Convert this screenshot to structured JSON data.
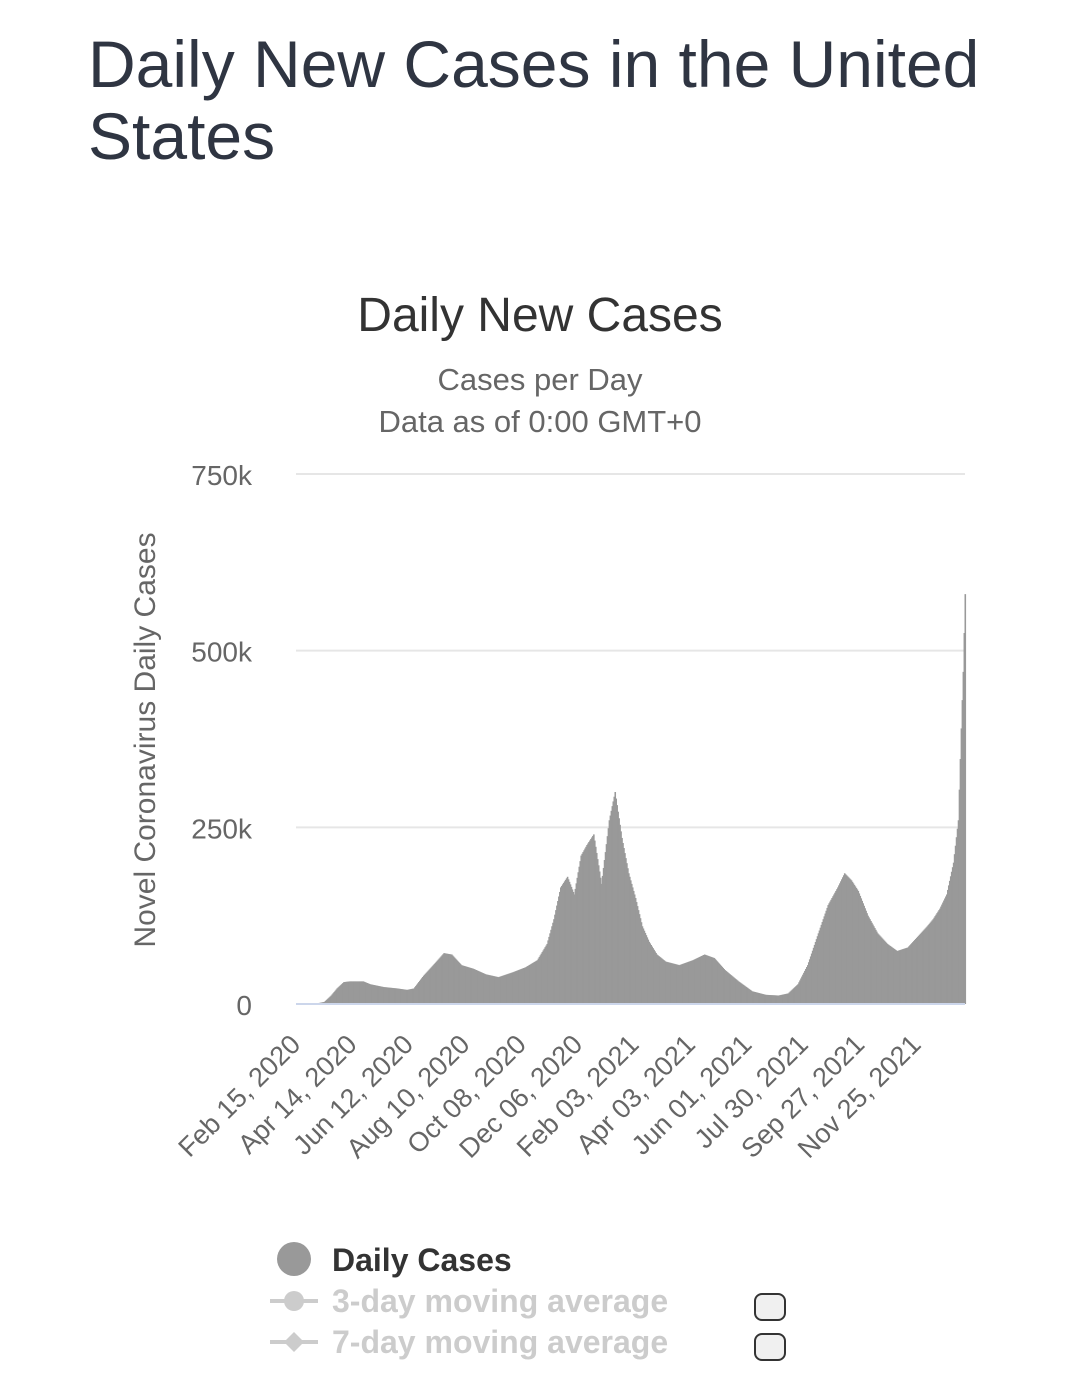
{
  "page": {
    "title": "Daily New Cases in the United States"
  },
  "colors": {
    "bars": "#999999",
    "grid": "#e6e6e6",
    "axis": "#ccd6eb",
    "text": "#333333",
    "muted": "#666666",
    "legend_inactive": "#cccccc"
  },
  "chart_data": {
    "type": "bar",
    "title": "Daily New Cases",
    "subtitle_lines": [
      "Cases per Day",
      "Data as of 0:00 GMT+0"
    ],
    "ylabel": "Novel Coronavirus Daily Cases",
    "xlabel": "",
    "ylim": [
      0,
      750000
    ],
    "yticks": [
      {
        "value": 0,
        "label": "0"
      },
      {
        "value": 250000,
        "label": "250k"
      },
      {
        "value": 500000,
        "label": "500k"
      },
      {
        "value": 750000,
        "label": "750k"
      }
    ],
    "x_range": [
      "2020-02-15",
      "2022-01-03"
    ],
    "xtick_labels": [
      "Feb 15, 2020",
      "Apr 14, 2020",
      "Jun 12, 2020",
      "Aug 10, 2020",
      "Oct 08, 2020",
      "Dec 06, 2020",
      "Feb 03, 2021",
      "Apr 03, 2021",
      "Jun 01, 2021",
      "Jul 30, 2021",
      "Sep 27, 2021",
      "Nov 25, 2021"
    ],
    "grid": true,
    "legend_position": "bottom",
    "series_daily": {
      "name": "Daily Cases",
      "points": [
        [
          "2020-02-15",
          0
        ],
        [
          "2020-03-05",
          200
        ],
        [
          "2020-03-15",
          3000
        ],
        [
          "2020-03-22",
          12000
        ],
        [
          "2020-03-28",
          22000
        ],
        [
          "2020-04-04",
          31000
        ],
        [
          "2020-04-10",
          32000
        ],
        [
          "2020-04-24",
          32000
        ],
        [
          "2020-05-01",
          28000
        ],
        [
          "2020-05-15",
          24000
        ],
        [
          "2020-05-29",
          22000
        ],
        [
          "2020-06-08",
          20000
        ],
        [
          "2020-06-15",
          22000
        ],
        [
          "2020-06-25",
          40000
        ],
        [
          "2020-07-05",
          55000
        ],
        [
          "2020-07-16",
          72000
        ],
        [
          "2020-07-24",
          70000
        ],
        [
          "2020-08-03",
          55000
        ],
        [
          "2020-08-15",
          50000
        ],
        [
          "2020-08-28",
          42000
        ],
        [
          "2020-09-10",
          38000
        ],
        [
          "2020-09-25",
          45000
        ],
        [
          "2020-10-08",
          52000
        ],
        [
          "2020-10-20",
          62000
        ],
        [
          "2020-10-30",
          85000
        ],
        [
          "2020-11-06",
          120000
        ],
        [
          "2020-11-13",
          165000
        ],
        [
          "2020-11-20",
          180000
        ],
        [
          "2020-11-27",
          155000
        ],
        [
          "2020-12-04",
          210000
        ],
        [
          "2020-12-10",
          225000
        ],
        [
          "2020-12-17",
          240000
        ],
        [
          "2020-12-25",
          170000
        ],
        [
          "2021-01-02",
          260000
        ],
        [
          "2021-01-08",
          300000
        ],
        [
          "2021-01-15",
          235000
        ],
        [
          "2021-01-22",
          185000
        ],
        [
          "2021-01-29",
          150000
        ],
        [
          "2021-02-05",
          110000
        ],
        [
          "2021-02-12",
          88000
        ],
        [
          "2021-02-20",
          70000
        ],
        [
          "2021-03-01",
          60000
        ],
        [
          "2021-03-15",
          55000
        ],
        [
          "2021-03-29",
          62000
        ],
        [
          "2021-04-10",
          70000
        ],
        [
          "2021-04-20",
          65000
        ],
        [
          "2021-05-01",
          48000
        ],
        [
          "2021-05-15",
          32000
        ],
        [
          "2021-05-29",
          18000
        ],
        [
          "2021-06-12",
          13000
        ],
        [
          "2021-06-25",
          12000
        ],
        [
          "2021-07-05",
          15000
        ],
        [
          "2021-07-15",
          28000
        ],
        [
          "2021-07-25",
          55000
        ],
        [
          "2021-08-05",
          100000
        ],
        [
          "2021-08-15",
          140000
        ],
        [
          "2021-08-25",
          165000
        ],
        [
          "2021-09-01",
          185000
        ],
        [
          "2021-09-08",
          175000
        ],
        [
          "2021-09-15",
          160000
        ],
        [
          "2021-09-25",
          125000
        ],
        [
          "2021-10-05",
          100000
        ],
        [
          "2021-10-15",
          85000
        ],
        [
          "2021-10-25",
          75000
        ],
        [
          "2021-11-05",
          80000
        ],
        [
          "2021-11-15",
          95000
        ],
        [
          "2021-11-25",
          110000
        ],
        [
          "2021-12-01",
          120000
        ],
        [
          "2021-12-08",
          135000
        ],
        [
          "2021-12-15",
          155000
        ],
        [
          "2021-12-22",
          200000
        ],
        [
          "2021-12-27",
          260000
        ],
        [
          "2021-12-30",
          390000
        ],
        [
          "2022-01-01",
          470000
        ],
        [
          "2022-01-03",
          580000
        ]
      ]
    },
    "legend": [
      {
        "label": "Daily Cases",
        "state": "visible"
      },
      {
        "label": "3-day moving average",
        "state": "hidden"
      },
      {
        "label": "7-day moving average",
        "state": "hidden"
      }
    ]
  }
}
